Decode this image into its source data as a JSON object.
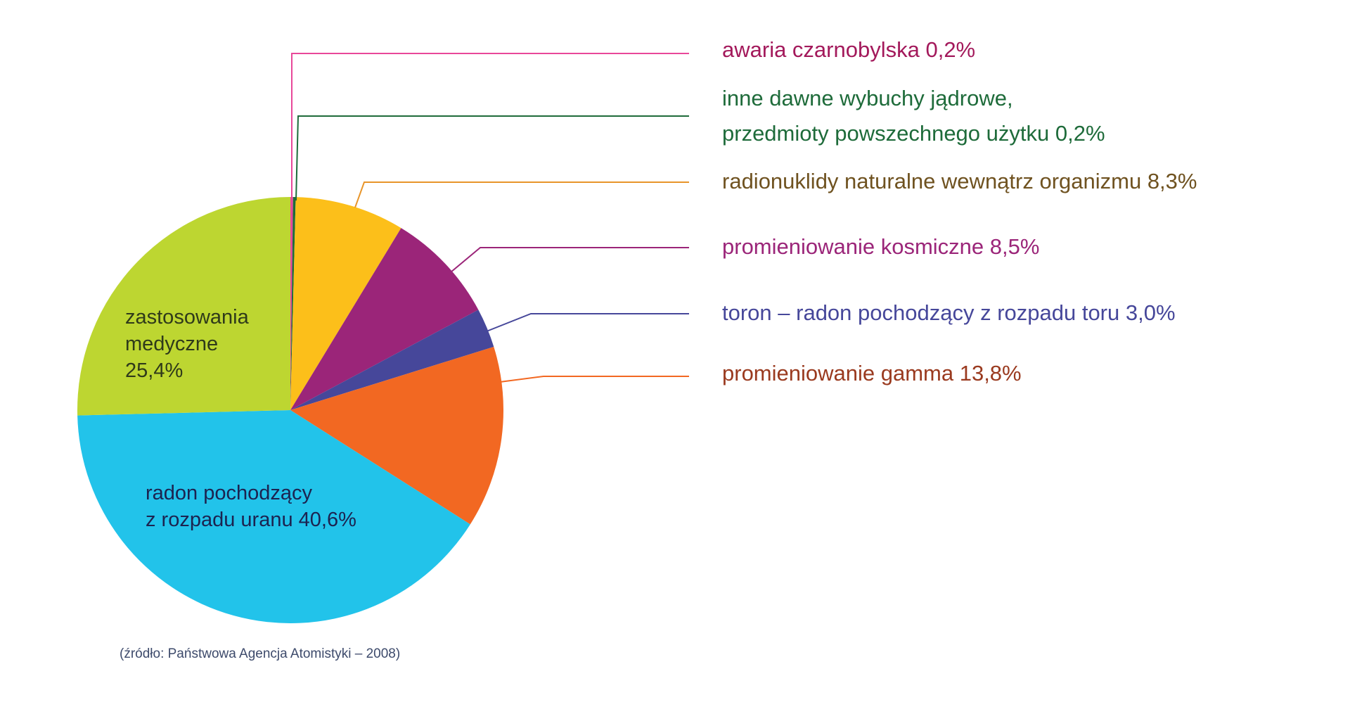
{
  "chart_data": {
    "type": "pie",
    "title": "",
    "start_angle": "12 o'clock, clockwise",
    "slices": [
      {
        "key": "chernobyl",
        "label": "awaria czarnobylska",
        "value": 0.2,
        "value_label": "0,2%",
        "color": "#e8489a",
        "text_color": "#a3195b"
      },
      {
        "key": "other_nuclear",
        "label": "inne dawne wybuchy jądrowe, przedmioty powszechnego użytku",
        "value": 0.2,
        "value_label": "0,2%",
        "color": "#1e6b3a",
        "text_color": "#1e6b3a"
      },
      {
        "key": "internal",
        "label": "radionuklidy naturalne wewnątrz organizmu",
        "value": 8.3,
        "value_label": "8,3%",
        "color": "#fcbf1a",
        "text_color": "#6f5220",
        "leader_color": "#e8952a"
      },
      {
        "key": "cosmic",
        "label": "promieniowanie kosmiczne",
        "value": 8.5,
        "value_label": "8,5%",
        "color": "#9b2579",
        "text_color": "#9b2579"
      },
      {
        "key": "thoron",
        "label": "toron – radon pochodzący z rozpadu toru",
        "value": 3.0,
        "value_label": "3,0%",
        "color": "#46479a",
        "text_color": "#46479a"
      },
      {
        "key": "gamma",
        "label": "promieniowanie gamma",
        "value": 13.8,
        "value_label": "13,8%",
        "color": "#f26822",
        "text_color": "#9a3a1f"
      },
      {
        "key": "radon",
        "label": "radon pochodzący z rozpadu uranu",
        "value": 40.6,
        "value_label": "40,6%",
        "color": "#22c3ea",
        "text_color": "#1c2350"
      },
      {
        "key": "medical",
        "label": "zastosowania medyczne",
        "value": 25.4,
        "value_label": "25,4%",
        "color": "#bdd631",
        "text_color": "#2f3a1a"
      }
    ],
    "legend_position": "right, with leader lines",
    "source": "(źródło: Państwowa Agencja Atomistyki – 2008)"
  },
  "labels": {
    "chernobyl": "awaria czarnobylska 0,2%",
    "other_nuclear_line1": "inne dawne wybuchy jądrowe,",
    "other_nuclear_line2": "przedmioty powszechnego użytku 0,2%",
    "internal": "radionuklidy naturalne wewnątrz organizmu 8,3%",
    "cosmic": "promieniowanie kosmiczne 8,5%",
    "thoron": "toron – radon pochodzący z rozpadu toru 3,0%",
    "gamma": "promieniowanie gamma 13,8%",
    "medical_line1": "zastosowania",
    "medical_line2": "medyczne",
    "medical_line3": "25,4%",
    "radon_line1": "radon pochodzący",
    "radon_line2": "z rozpadu uranu 40,6%"
  },
  "source_note": "(źródło: Państwowa Agencja Atomistyki – 2008)"
}
